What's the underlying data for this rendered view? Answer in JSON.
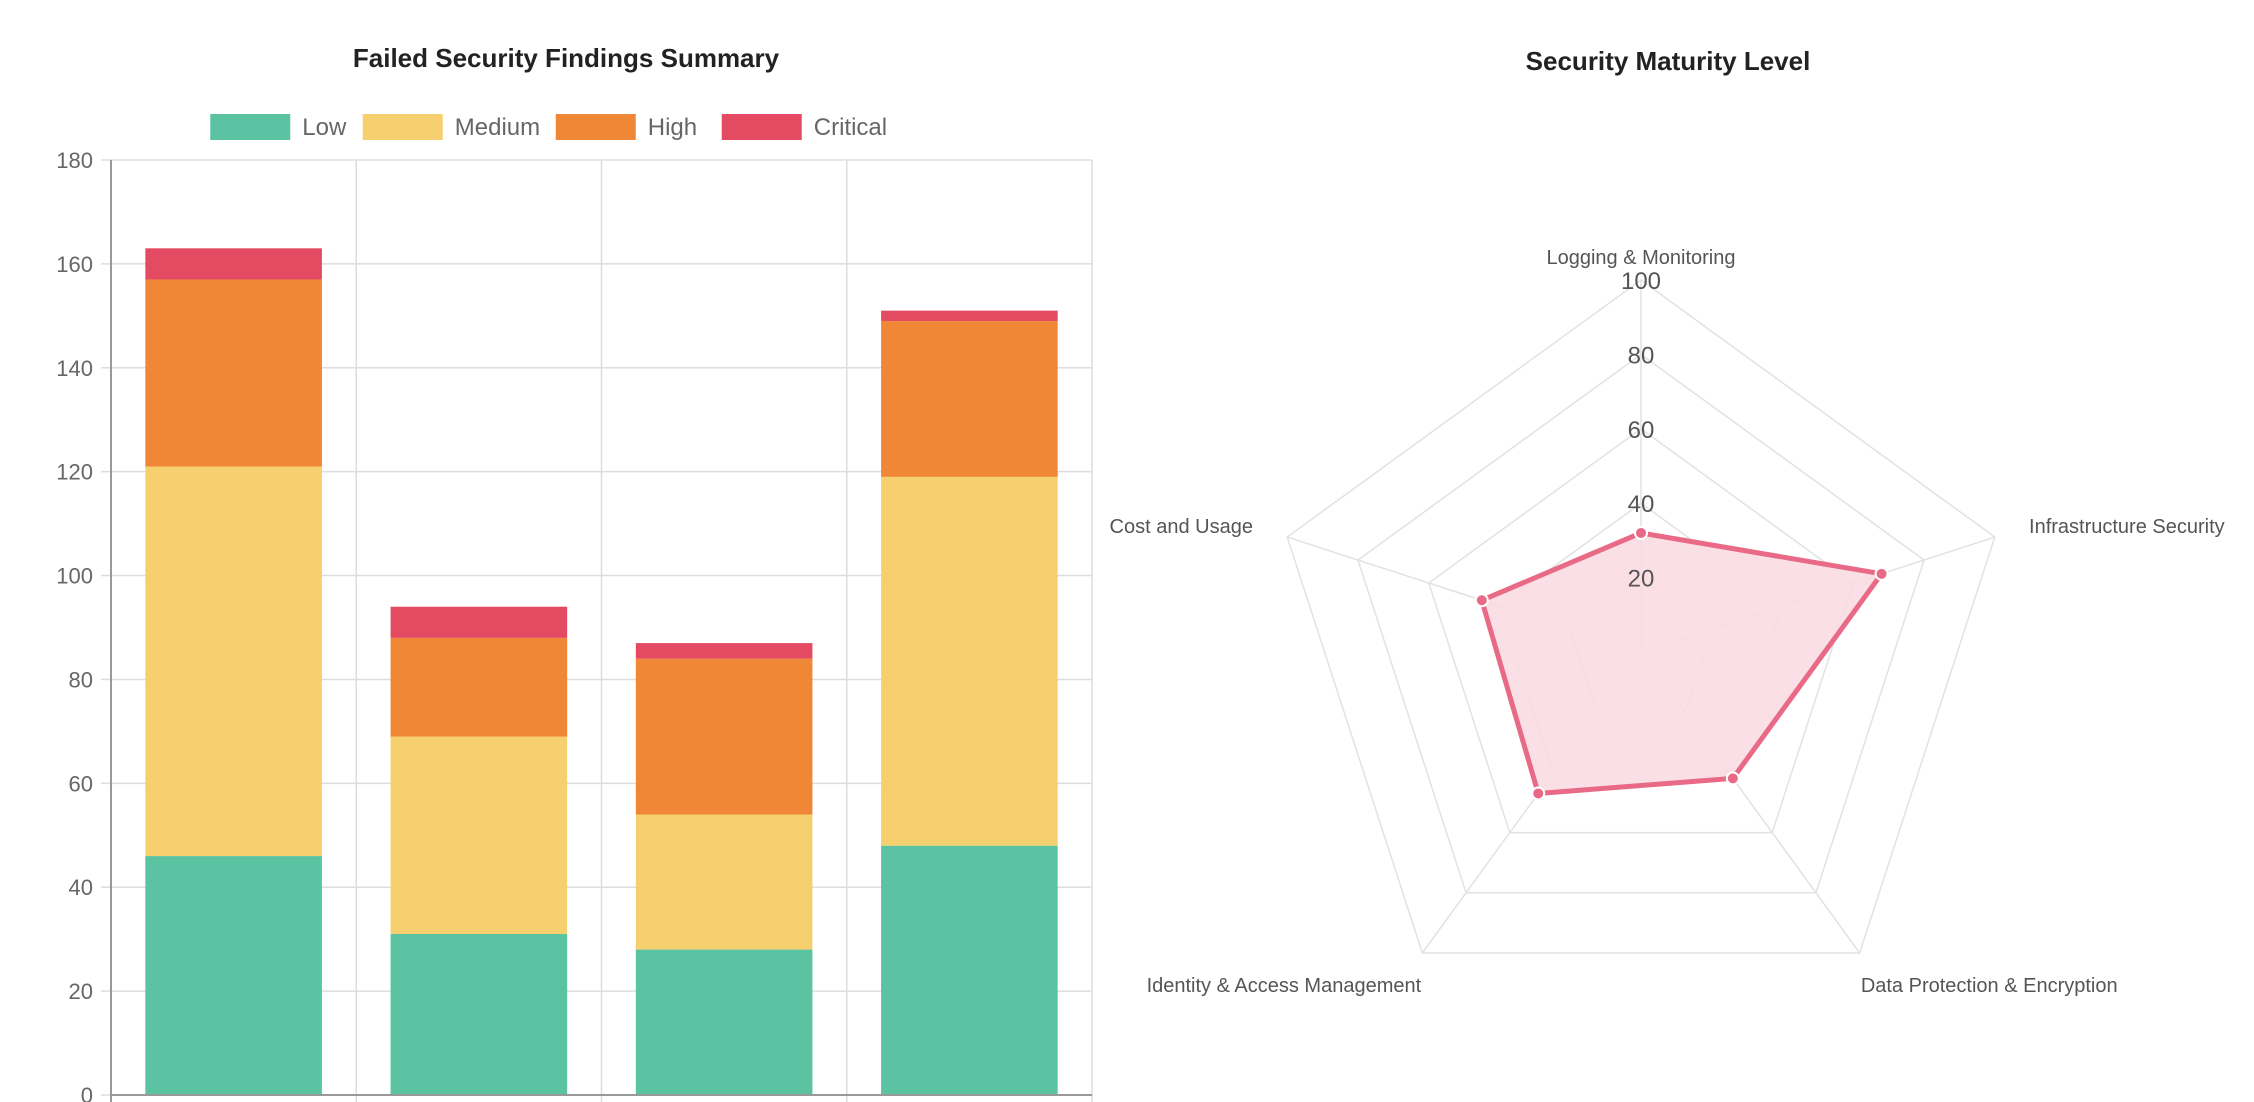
{
  "chart_data": [
    {
      "type": "bar",
      "stacked": true,
      "title": "Failed Security Findings Summary",
      "categories": [
        "",
        "",
        "",
        ""
      ],
      "series": [
        {
          "name": "Low",
          "color": "#5bc2a2",
          "values": [
            46,
            31,
            28,
            48
          ]
        },
        {
          "name": "Medium",
          "color": "#f6d06e",
          "values": [
            75,
            38,
            26,
            71
          ]
        },
        {
          "name": "High",
          "color": "#ef8736",
          "values": [
            36,
            19,
            30,
            30
          ]
        },
        {
          "name": "Critical",
          "color": "#e44b63",
          "values": [
            6,
            6,
            3,
            2
          ]
        }
      ],
      "ylim": [
        0,
        180
      ],
      "yticks": [
        0,
        20,
        40,
        60,
        80,
        100,
        120,
        140,
        160,
        180
      ],
      "grid": true,
      "legend_position": "top"
    },
    {
      "type": "radar",
      "title": "Security Maturity Level",
      "axes": [
        "Logging & Monitoring",
        "Infrastructure Security",
        "Data Protection & Encryption",
        "Identity & Access Management",
        "Cost and Usage"
      ],
      "values": [
        32,
        68,
        42,
        47,
        45
      ],
      "rlim": [
        0,
        100
      ],
      "rticks": [
        20,
        40,
        60,
        80,
        100
      ],
      "color": "#e96a86",
      "fill_color": "#fadde3",
      "grid": true
    }
  ]
}
